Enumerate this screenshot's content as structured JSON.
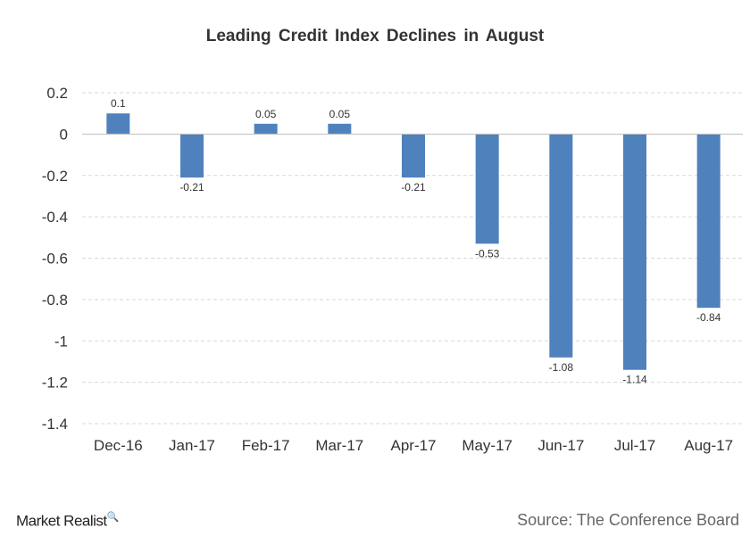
{
  "chart_data": {
    "type": "bar",
    "title": "Leading Credit Index Declines in August",
    "categories": [
      "Dec-16",
      "Jan-17",
      "Feb-17",
      "Mar-17",
      "Apr-17",
      "May-17",
      "Jun-17",
      "Jul-17",
      "Aug-17"
    ],
    "values": [
      0.1,
      -0.21,
      0.05,
      0.05,
      -0.21,
      -0.53,
      -1.08,
      -1.14,
      -0.84
    ],
    "ylim": [
      -1.4,
      0.2
    ],
    "yticks": [
      "0.2",
      "0",
      "-0.2",
      "-0.4",
      "-0.6",
      "-0.8",
      "-1",
      "-1.2",
      "-1.4"
    ],
    "grid": true,
    "bar_color": "#4f81bd",
    "xlabel": "",
    "ylabel": ""
  },
  "footer": {
    "logo": "Market Realist",
    "source": "Source: The Conference Board"
  }
}
